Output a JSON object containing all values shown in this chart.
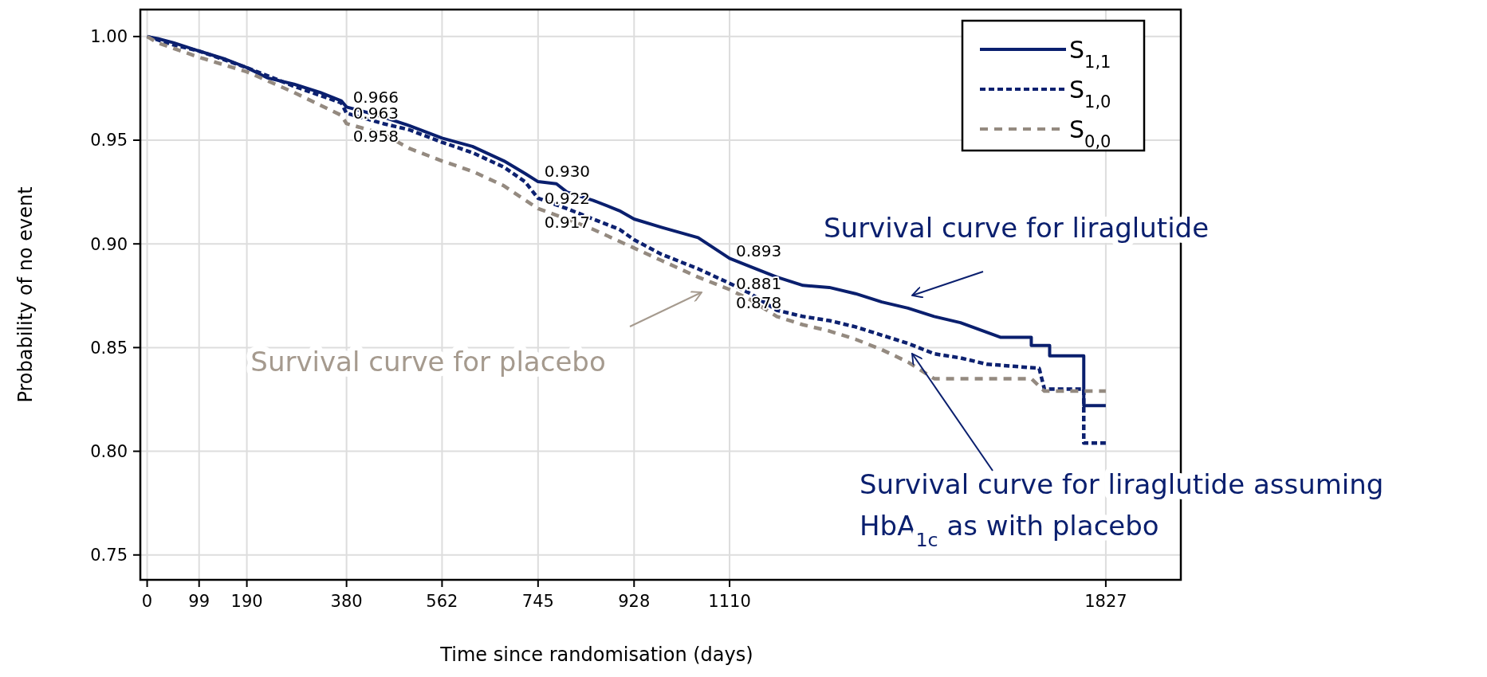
{
  "chart_data": {
    "type": "line",
    "xlabel": "Time since randomisation (days)",
    "ylabel": "Probability of no event",
    "xlim": [
      -13,
      1970
    ],
    "ylim": [
      0.738,
      1.013
    ],
    "xticks": [
      0,
      99,
      190,
      380,
      562,
      745,
      928,
      1110,
      1827
    ],
    "yticks": [
      {
        "value": 0.75,
        "label": "0.75"
      },
      {
        "value": 0.8,
        "label": "0.80"
      },
      {
        "value": 0.85,
        "label": "0.85"
      },
      {
        "value": 0.9,
        "label": "0.90"
      },
      {
        "value": 0.95,
        "label": "0.95"
      },
      {
        "value": 1.0,
        "label": "1.00"
      }
    ],
    "grid": true,
    "legend": "top right",
    "series": [
      {
        "name": "S$_{1,1}$",
        "color": "#0a1f6e",
        "line_style": "solid",
        "x": [
          0,
          20,
          50,
          99,
          150,
          190,
          230,
          280,
          330,
          370,
          380,
          440,
          500,
          562,
          620,
          680,
          720,
          745,
          780,
          800,
          850,
          900,
          928,
          980,
          1050,
          1110,
          1150,
          1200,
          1250,
          1300,
          1350,
          1400,
          1450,
          1500,
          1550,
          1626,
          1685,
          1685,
          1720,
          1720,
          1785,
          1785,
          1827
        ],
        "values": [
          1.0,
          0.999,
          0.997,
          0.993,
          0.989,
          0.985,
          0.98,
          0.977,
          0.973,
          0.969,
          0.966,
          0.962,
          0.957,
          0.951,
          0.947,
          0.94,
          0.934,
          0.93,
          0.929,
          0.925,
          0.921,
          0.916,
          0.912,
          0.908,
          0.903,
          0.893,
          0.889,
          0.884,
          0.88,
          0.879,
          0.876,
          0.872,
          0.869,
          0.865,
          0.862,
          0.855,
          0.855,
          0.851,
          0.851,
          0.846,
          0.846,
          0.822,
          0.822
        ]
      },
      {
        "name": "S$_{1,0}$",
        "color": "#0d2170",
        "line_style": "dotted",
        "x": [
          0,
          50,
          99,
          190,
          280,
          370,
          380,
          450,
          500,
          562,
          620,
          680,
          720,
          745,
          800,
          850,
          900,
          928,
          980,
          1050,
          1110,
          1150,
          1200,
          1250,
          1300,
          1350,
          1400,
          1450,
          1500,
          1550,
          1600,
          1700,
          1710,
          1785,
          1785,
          1827
        ],
        "values": [
          1.0,
          0.996,
          0.993,
          0.985,
          0.976,
          0.968,
          0.963,
          0.958,
          0.955,
          0.949,
          0.944,
          0.937,
          0.93,
          0.922,
          0.917,
          0.912,
          0.907,
          0.902,
          0.895,
          0.888,
          0.881,
          0.876,
          0.868,
          0.865,
          0.863,
          0.86,
          0.856,
          0.852,
          0.847,
          0.845,
          0.842,
          0.84,
          0.83,
          0.83,
          0.804,
          0.804
        ]
      },
      {
        "name": "S$_{0,0}$",
        "color": "#948a80",
        "line_style": "dashed",
        "x": [
          0,
          20,
          99,
          190,
          280,
          370,
          380,
          450,
          500,
          562,
          620,
          680,
          745,
          800,
          850,
          928,
          980,
          1050,
          1110,
          1150,
          1200,
          1250,
          1300,
          1350,
          1400,
          1450,
          1500,
          1685,
          1710,
          1827
        ],
        "values": [
          1.0,
          0.997,
          0.99,
          0.983,
          0.973,
          0.962,
          0.958,
          0.953,
          0.946,
          0.94,
          0.935,
          0.928,
          0.917,
          0.912,
          0.907,
          0.898,
          0.892,
          0.884,
          0.878,
          0.873,
          0.865,
          0.861,
          0.858,
          0.854,
          0.849,
          0.843,
          0.835,
          0.835,
          0.829,
          0.829
        ]
      }
    ],
    "annotations": [
      {
        "text": "0.966",
        "x": 380,
        "y": 0.966
      },
      {
        "text": "0.963",
        "x": 380,
        "y": 0.963
      },
      {
        "text": "0.958",
        "x": 380,
        "y": 0.958
      },
      {
        "text": "0.930",
        "x": 745,
        "y": 0.93
      },
      {
        "text": "0.922",
        "x": 745,
        "y": 0.922
      },
      {
        "text": "0.917",
        "x": 745,
        "y": 0.917
      },
      {
        "text": "0.893",
        "x": 1110,
        "y": 0.893
      },
      {
        "text": "0.881",
        "x": 1110,
        "y": 0.881
      },
      {
        "text": "0.878",
        "x": 1110,
        "y": 0.878
      },
      "Survival curve for liraglutide",
      "Survival curve for placebo",
      "Survival curve for liraglutide assuming\nHbA$_{1c}$ as with placebo"
    ]
  }
}
